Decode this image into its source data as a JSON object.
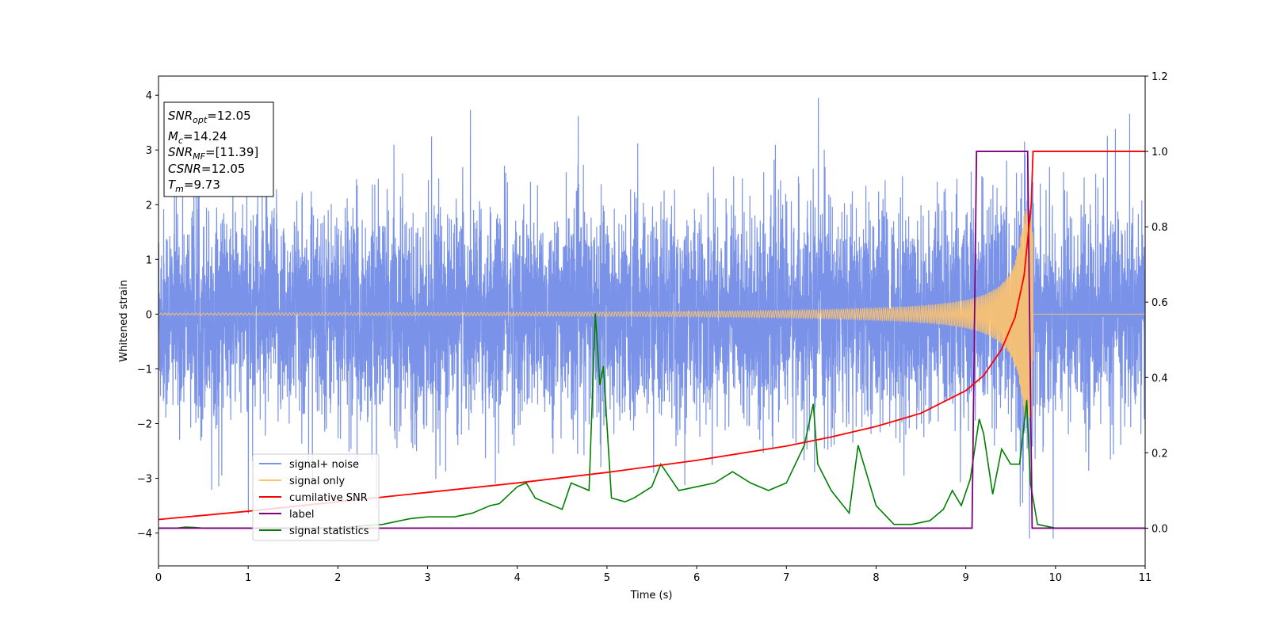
{
  "chart_data": {
    "type": "line",
    "xlabel": "Time (s)",
    "ylabel": "Whitened strain",
    "xlim": [
      0,
      11
    ],
    "ylim_left": [
      -4.6,
      4.35
    ],
    "ylim_right": [
      -0.1,
      1.2
    ],
    "x_ticks": [
      "0",
      "1",
      "2",
      "3",
      "4",
      "5",
      "6",
      "7",
      "8",
      "9",
      "10",
      "11"
    ],
    "y_left_ticks": [
      "4",
      "3",
      "2",
      "1",
      "0",
      "−1",
      "−2",
      "−3",
      "−4"
    ],
    "y_left_tick_values": [
      4,
      3,
      2,
      1,
      0,
      -1,
      -2,
      -3,
      -4
    ],
    "y_right_ticks": [
      "1.2",
      "1.0",
      "0.8",
      "0.6",
      "0.4",
      "0.2",
      "0.0"
    ],
    "y_right_tick_values": [
      1.2,
      1.0,
      0.8,
      0.6,
      0.4,
      0.2,
      0.0
    ],
    "legend_position": "lower-left",
    "info_box": {
      "snr_opt": {
        "sym": "SNR",
        "sub": "opt",
        "value": "=12.05"
      },
      "mc": {
        "sym": "M",
        "sub": "c",
        "value": "=14.24"
      },
      "snr_mf": {
        "sym": "SNR",
        "sub": "MF",
        "value": "=[11.39]"
      },
      "csnr": {
        "sym": "CSNR",
        "sub": "",
        "value": "=12.05"
      },
      "tm": {
        "sym": "T",
        "sub": "m",
        "value": "=9.73"
      }
    },
    "series": [
      {
        "name": "signal+ noise",
        "axis": "left",
        "color": "#7a93e8",
        "description_values": {
          "approx_std": 1.0,
          "min": -4.1,
          "max": 3.95
        }
      },
      {
        "name": "signal only",
        "axis": "left",
        "color": "#ffc46b",
        "chirp": {
          "amplitude_start": 0.02,
          "amplitude_peak": 1.9,
          "merger_time": 9.73,
          "end_time": 9.75
        }
      },
      {
        "name": "cumilative SNR",
        "axis": "right",
        "color": "#ff0000",
        "x": [
          0,
          1,
          2,
          3,
          4,
          5,
          6,
          7,
          7.5,
          8,
          8.5,
          9,
          9.2,
          9.4,
          9.55,
          9.65,
          9.73,
          9.75,
          11
        ],
        "y": [
          0.023,
          0.045,
          0.07,
          0.095,
          0.12,
          0.148,
          0.18,
          0.218,
          0.242,
          0.27,
          0.305,
          0.365,
          0.405,
          0.475,
          0.56,
          0.67,
          0.86,
          1.0,
          1.0
        ]
      },
      {
        "name": "label",
        "axis": "right",
        "color": "#800080",
        "x": [
          0,
          9.07,
          9.12,
          9.69,
          9.74,
          11
        ],
        "y": [
          0,
          0,
          1,
          1,
          0,
          0
        ]
      },
      {
        "name": "signal statistics",
        "axis": "right",
        "color": "#008000",
        "x": [
          0,
          0.2,
          0.3,
          0.4,
          0.5,
          1,
          1.5,
          2,
          2.2,
          2.5,
          2.8,
          3,
          3.3,
          3.5,
          3.6,
          3.7,
          3.8,
          4,
          4.1,
          4.2,
          4.3,
          4.4,
          4.5,
          4.6,
          4.7,
          4.8,
          4.87,
          4.92,
          4.96,
          5.05,
          5.2,
          5.3,
          5.5,
          5.6,
          5.8,
          6,
          6.2,
          6.4,
          6.6,
          6.8,
          7,
          7.2,
          7.3,
          7.35,
          7.5,
          7.7,
          7.8,
          8,
          8.2,
          8.4,
          8.6,
          8.75,
          8.85,
          8.95,
          9.05,
          9.15,
          9.2,
          9.3,
          9.4,
          9.5,
          9.6,
          9.68,
          9.72,
          9.8,
          10,
          11
        ],
        "y": [
          0,
          0.0,
          0.003,
          0.002,
          0.0,
          0.0,
          0.0,
          0.0,
          0.005,
          0.01,
          0.025,
          0.03,
          0.03,
          0.04,
          0.05,
          0.06,
          0.065,
          0.11,
          0.12,
          0.08,
          0.07,
          0.06,
          0.05,
          0.12,
          0.11,
          0.1,
          0.57,
          0.38,
          0.43,
          0.08,
          0.07,
          0.08,
          0.11,
          0.17,
          0.1,
          0.11,
          0.12,
          0.15,
          0.12,
          0.1,
          0.12,
          0.22,
          0.33,
          0.17,
          0.1,
          0.04,
          0.22,
          0.06,
          0.01,
          0.01,
          0.02,
          0.05,
          0.1,
          0.06,
          0.13,
          0.29,
          0.25,
          0.09,
          0.21,
          0.17,
          0.17,
          0.34,
          0.12,
          0.01,
          0.0,
          0.0
        ]
      }
    ]
  }
}
